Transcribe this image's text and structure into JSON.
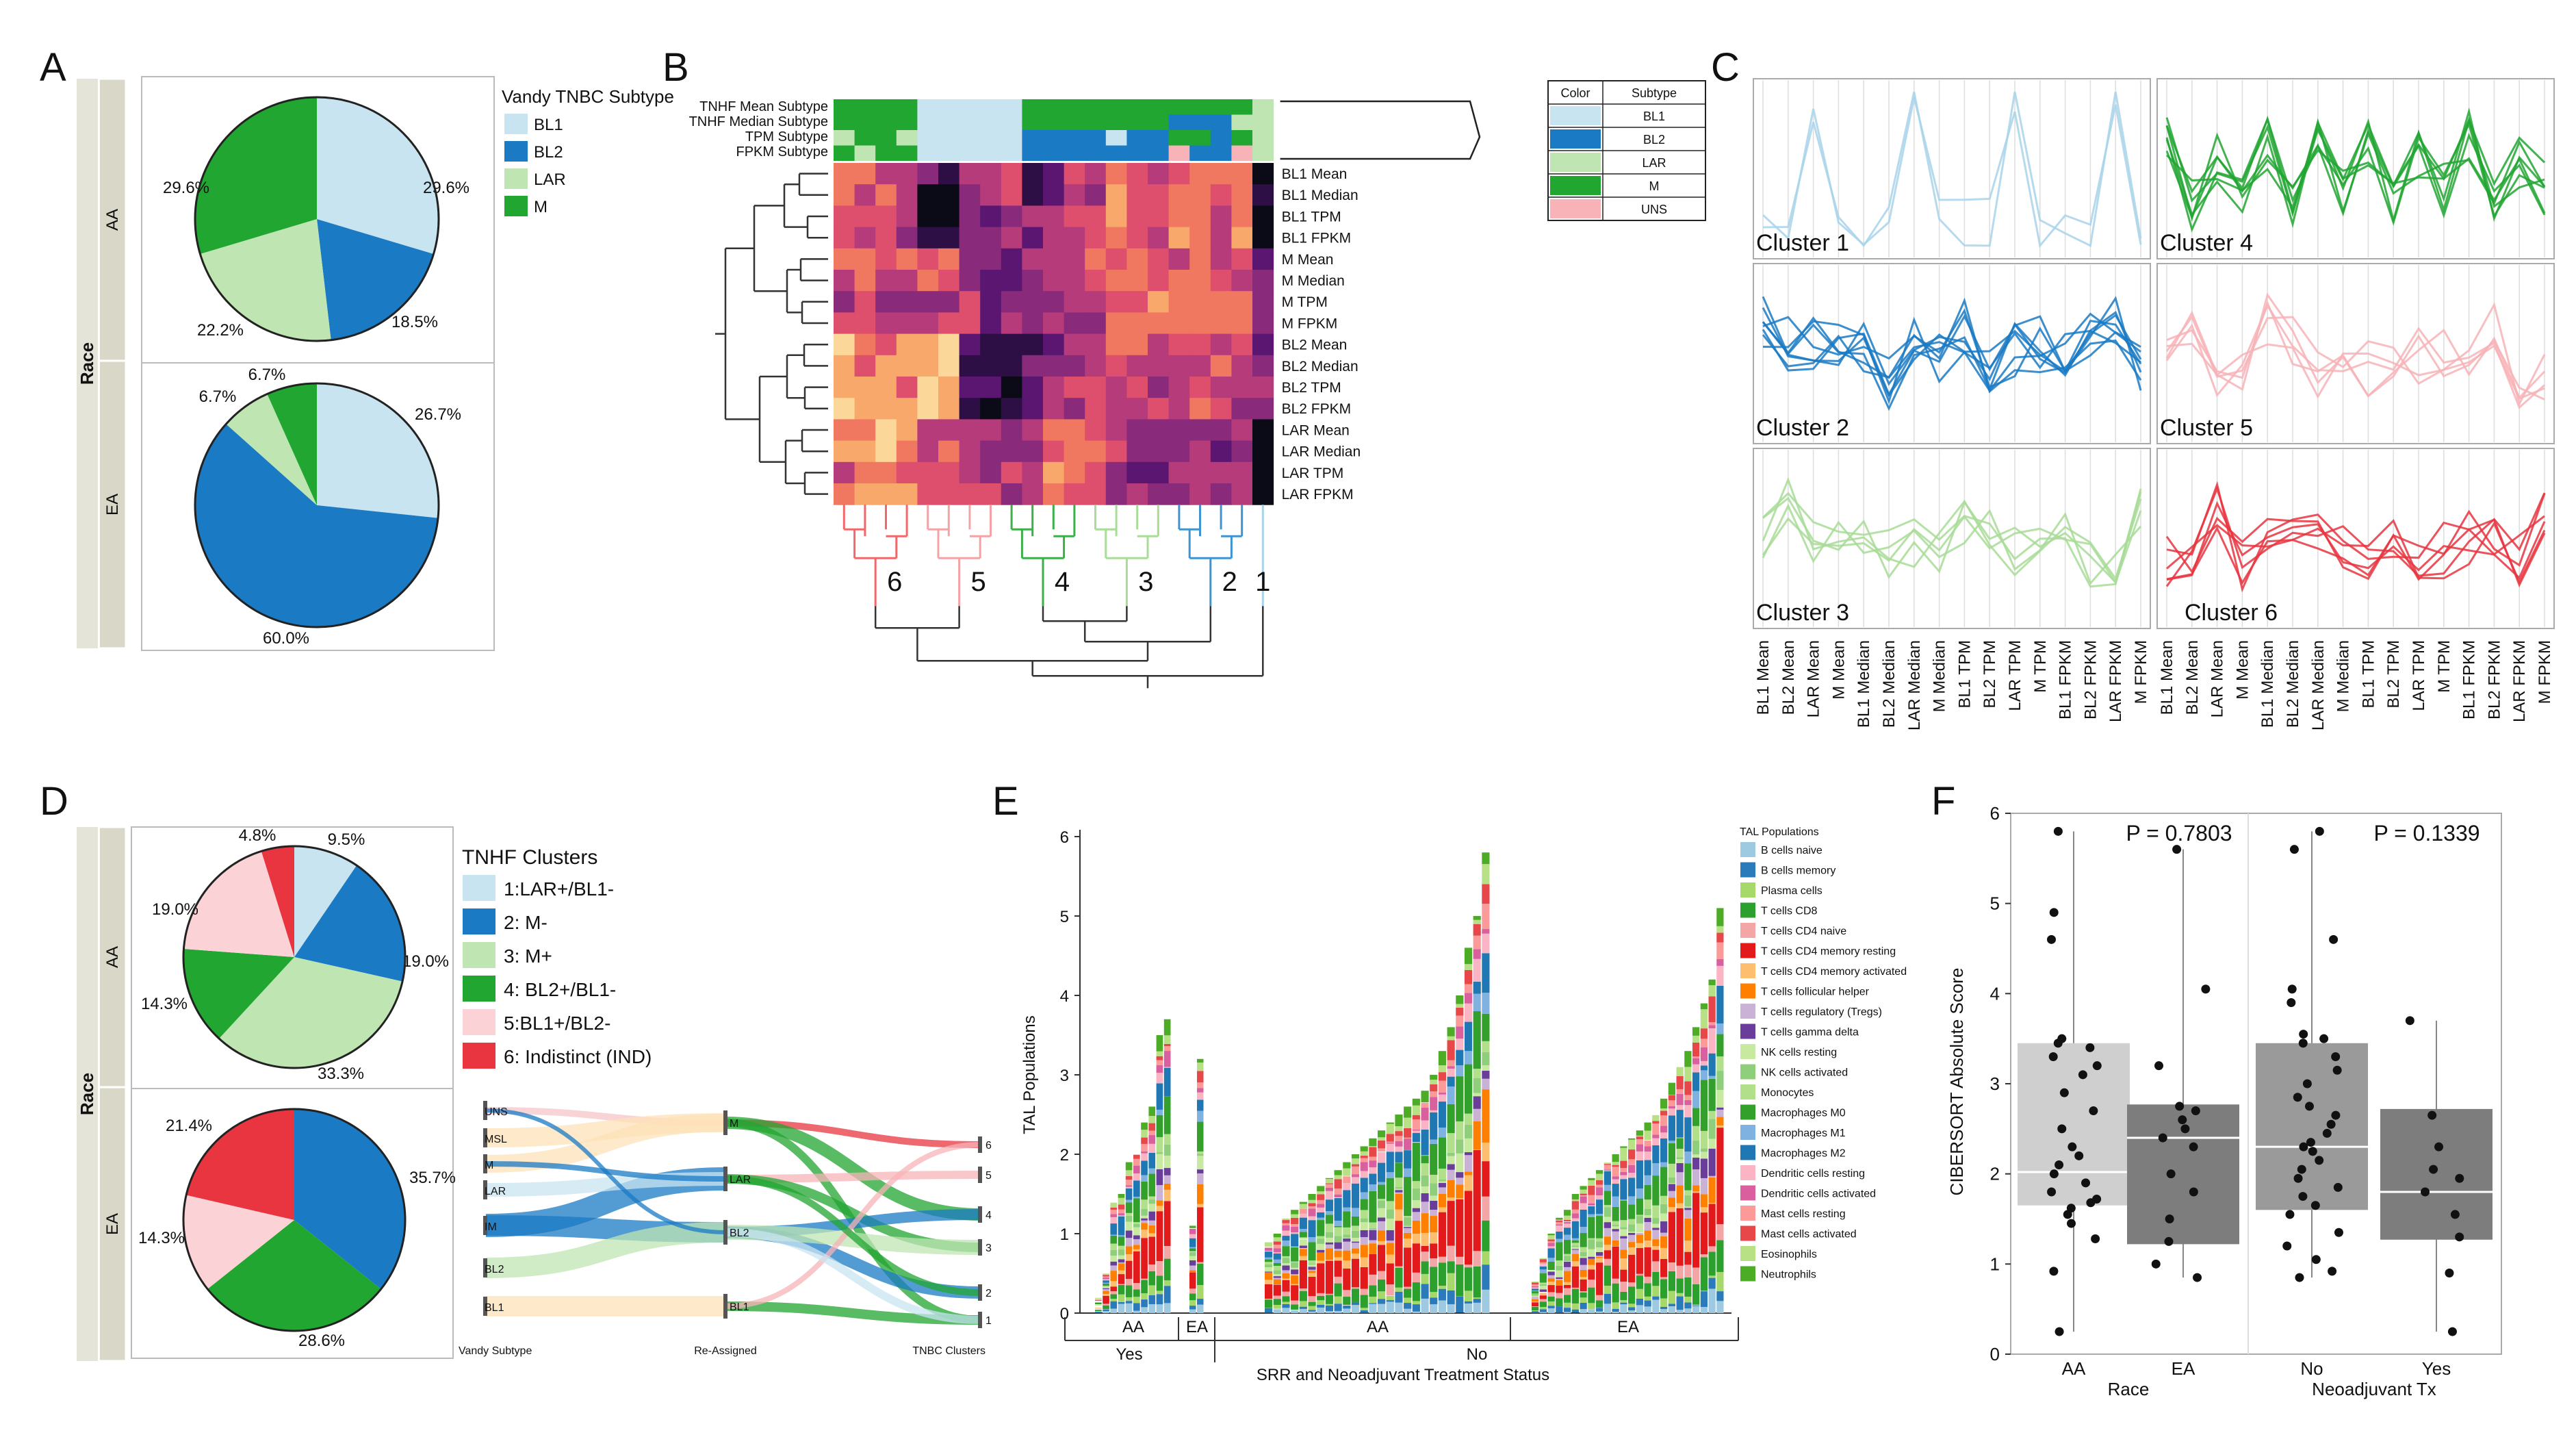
{
  "panel_letters": [
    "A",
    "B",
    "C",
    "D",
    "E",
    "F"
  ],
  "colors": {
    "BL1": "#c9e4f1",
    "BL2": "#1a7ac4",
    "LAR": "#bfe5b3",
    "M": "#21a631",
    "UNS": "#f7b3b7",
    "IND": "#e8353f",
    "gray_strip": "#e5e4d8"
  },
  "chart_data": [
    {
      "id": "A",
      "type": "pie",
      "title": "Vandy TNBC Subtype",
      "facet_label": "Race",
      "legend": [
        "BL1",
        "BL2",
        "LAR",
        "M"
      ],
      "groups": [
        {
          "name": "AA",
          "slices": [
            {
              "label": "BL1",
              "value": 29.6,
              "text": "29.6%"
            },
            {
              "label": "BL2",
              "value": 18.5,
              "text": "18.5%"
            },
            {
              "label": "LAR",
              "value": 22.2,
              "text": "22.2%"
            },
            {
              "label": "M",
              "value": 29.6,
              "text": "29.6%"
            }
          ]
        },
        {
          "name": "EA",
          "slices": [
            {
              "label": "BL1",
              "value": 26.7,
              "text": "26.7%"
            },
            {
              "label": "BL2",
              "value": 60.0,
              "text": "60.0%"
            },
            {
              "label": "LAR",
              "value": 6.7,
              "text": "6.7%"
            },
            {
              "label": "M",
              "value": 6.7,
              "text": "6.7%"
            }
          ]
        }
      ]
    },
    {
      "id": "B",
      "type": "heatmap",
      "top_bars": [
        "TNHF Mean Subtype",
        "TNHF Median Subtype",
        "TPM Subtype",
        "FPKM Subtype"
      ],
      "rows": [
        "BL1 Mean",
        "BL1 Median",
        "BL1 TPM",
        "BL1 FPKM",
        "M Mean",
        "M Median",
        "M TPM",
        "M FPKM",
        "BL2 Mean",
        "BL2 Median",
        "BL2 TPM",
        "BL2 FPKM",
        "LAR Mean",
        "LAR Median",
        "LAR TPM",
        "LAR FPKM"
      ],
      "cluster_labels": [
        "6",
        "5",
        "4",
        "3",
        "2",
        "1"
      ],
      "legend_header": [
        "Color",
        "Subtype"
      ],
      "legend": [
        "BL1",
        "BL2",
        "LAR",
        "M",
        "UNS"
      ]
    },
    {
      "id": "C",
      "type": "line",
      "clusters": [
        "Cluster 1",
        "Cluster 4",
        "Cluster 2",
        "Cluster 5",
        "Cluster 3",
        "Cluster 6"
      ],
      "x_ticks": [
        "BL1 Mean",
        "BL2 Mean",
        "LAR Mean",
        "M Mean",
        "BL1 Median",
        "BL2 Median",
        "LAR Median",
        "M Median",
        "BL1 TPM",
        "BL2 TPM",
        "LAR TPM",
        "M TPM",
        "BL1 FPKM",
        "BL2 FPKM",
        "LAR FPKM",
        "M FPKM"
      ]
    },
    {
      "id": "D",
      "type": "pie",
      "title": "TNHF Clusters",
      "facet_label": "Race",
      "legend": [
        "1:LAR+/BL1-",
        "2: M-",
        "3: M+",
        "4: BL2+/BL1-",
        "5:BL1+/BL2-",
        "6: Indistinct (IND)"
      ],
      "groups": [
        {
          "name": "AA",
          "slices": [
            {
              "label": "1",
              "value": 9.5,
              "text": "9.5%"
            },
            {
              "label": "2",
              "value": 19.0,
              "text": "19.0%"
            },
            {
              "label": "3",
              "value": 33.3,
              "text": "33.3%"
            },
            {
              "label": "4",
              "value": 14.3,
              "text": "14.3%"
            },
            {
              "label": "5",
              "value": 19.0,
              "text": "19.0%"
            },
            {
              "label": "6",
              "value": 4.8,
              "text": "4.8%"
            }
          ]
        },
        {
          "name": "EA",
          "slices": [
            {
              "label": "2",
              "value": 35.7,
              "text": "35.7%"
            },
            {
              "label": "4",
              "value": 28.6,
              "text": "28.6%"
            },
            {
              "label": "5",
              "value": 14.3,
              "text": "14.3%"
            },
            {
              "label": "6",
              "value": 21.4,
              "text": "21.4%"
            }
          ]
        }
      ],
      "sankey": {
        "axes": [
          "Vandy Subtype",
          "Re-Assigned",
          "TNBC Clusters"
        ],
        "left_nodes": [
          "UNS",
          "MSL",
          "M",
          "LAR",
          "IM",
          "BL2",
          "BL1"
        ],
        "mid_nodes": [
          "M",
          "LAR",
          "BL2",
          "BL1"
        ],
        "right_nodes": [
          "6",
          "5",
          "4",
          "3",
          "2",
          "1"
        ]
      }
    },
    {
      "id": "E",
      "type": "bar",
      "ylabel": "TAL Populations",
      "xlabel": "SRR and Neoadjuvant Treatment Status",
      "ylim": [
        0,
        6
      ],
      "yticks": [
        "0",
        "1",
        "2",
        "3",
        "4",
        "5",
        "6"
      ],
      "group_labels": [
        "AA",
        "EA",
        "AA",
        "EA"
      ],
      "treatment_labels": [
        "Yes",
        "No"
      ],
      "legend_title": "TAL Populations",
      "series": [
        {
          "name": "B cells naive",
          "color": "#9ecae1"
        },
        {
          "name": "B cells memory",
          "color": "#2b7bba"
        },
        {
          "name": "Plasma cells",
          "color": "#a6d96a"
        },
        {
          "name": "T cells CD8",
          "color": "#2ca02c"
        },
        {
          "name": "T cells CD4 naive",
          "color": "#f4a6a6"
        },
        {
          "name": "T cells CD4 memory resting",
          "color": "#e31a1c"
        },
        {
          "name": "T cells CD4 memory activated",
          "color": "#fdbf6f"
        },
        {
          "name": "T cells follicular helper",
          "color": "#ff7f00"
        },
        {
          "name": "T cells regulatory (Tregs)",
          "color": "#cab2d6"
        },
        {
          "name": "T cells gamma delta",
          "color": "#6a3d9a"
        },
        {
          "name": "NK cells resting",
          "color": "#c7e9a0"
        },
        {
          "name": "NK cells activated",
          "color": "#8fce7a"
        },
        {
          "name": "Monocytes",
          "color": "#b2df8a"
        },
        {
          "name": "Macrophages M0",
          "color": "#33a02c"
        },
        {
          "name": "Macrophages M1",
          "color": "#7fb2e0"
        },
        {
          "name": "Macrophages M2",
          "color": "#1f78b4"
        },
        {
          "name": "Dendritic cells resting",
          "color": "#fbb4c4"
        },
        {
          "name": "Dendritic cells activated",
          "color": "#d95f9e"
        },
        {
          "name": "Mast cells resting",
          "color": "#fb9a99"
        },
        {
          "name": "Mast cells activated",
          "color": "#e8474a"
        },
        {
          "name": "Eosinophils",
          "color": "#b8e186"
        },
        {
          "name": "Neutrophils",
          "color": "#4dac26"
        }
      ],
      "group_totals": [
        {
          "group": "Yes-AA",
          "totals": [
            0.2,
            0.5,
            1.4,
            1.5,
            1.9,
            2.0,
            2.4,
            2.6,
            3.5,
            3.7
          ]
        },
        {
          "group": "Yes-EA",
          "totals": [
            1.1,
            3.2
          ]
        },
        {
          "group": "No-AA",
          "totals": [
            0.9,
            1.0,
            1.2,
            1.3,
            1.4,
            1.5,
            1.6,
            1.7,
            1.8,
            1.9,
            2.0,
            2.1,
            2.2,
            2.3,
            2.4,
            2.5,
            2.6,
            2.7,
            2.8,
            3.0,
            3.3,
            3.6,
            4.0,
            4.6,
            5.0,
            5.8
          ]
        },
        {
          "group": "No-EA",
          "totals": [
            0.4,
            0.7,
            1.0,
            1.2,
            1.3,
            1.5,
            1.6,
            1.7,
            1.8,
            1.9,
            2.0,
            2.1,
            2.2,
            2.3,
            2.4,
            2.5,
            2.7,
            2.9,
            3.1,
            3.3,
            3.6,
            3.9,
            4.2,
            5.1
          ]
        }
      ]
    },
    {
      "id": "F",
      "type": "scatter",
      "ylabel": "CIBERSORT Absolute Score",
      "ylim": [
        0,
        6
      ],
      "yticks": [
        "0",
        "1",
        "2",
        "3",
        "4",
        "5",
        "6"
      ],
      "facets": [
        {
          "title": "Race",
          "categories": [
            "AA",
            "EA"
          ],
          "p_value": "P = 0.7803"
        },
        {
          "title": "Neoadjuvant Tx",
          "categories": [
            "No",
            "Yes"
          ],
          "p_value": "P = 0.1339"
        }
      ],
      "boxes": [
        {
          "category": "AA",
          "min": 0.25,
          "q1": 1.65,
          "median": 2.02,
          "q3": 3.45,
          "max": 5.8,
          "color": "#cfcfcf",
          "points": [
            0.25,
            0.92,
            1.28,
            1.45,
            1.55,
            1.62,
            1.68,
            1.72,
            1.8,
            1.9,
            2.0,
            2.1,
            2.2,
            2.3,
            2.5,
            2.7,
            2.9,
            3.1,
            3.2,
            3.3,
            3.4,
            3.45,
            3.5,
            4.6,
            4.9,
            5.8
          ]
        },
        {
          "category": "EA",
          "min": 0.85,
          "q1": 1.22,
          "median": 2.4,
          "q3": 2.77,
          "max": 5.6,
          "color": "#7d7d7d",
          "points": [
            0.85,
            1.0,
            1.25,
            1.5,
            1.8,
            2.0,
            2.3,
            2.4,
            2.5,
            2.6,
            2.7,
            2.75,
            3.2,
            4.05,
            5.6
          ]
        },
        {
          "category": "No",
          "min": 0.85,
          "q1": 1.6,
          "median": 2.3,
          "q3": 3.45,
          "max": 5.8,
          "color": "#9a9a9a",
          "points": [
            0.85,
            0.92,
            1.05,
            1.2,
            1.35,
            1.55,
            1.65,
            1.75,
            1.85,
            1.95,
            2.05,
            2.15,
            2.25,
            2.3,
            2.35,
            2.45,
            2.55,
            2.65,
            2.75,
            2.85,
            3.0,
            3.15,
            3.3,
            3.45,
            3.5,
            3.55,
            3.9,
            4.05,
            4.6,
            5.6,
            5.8
          ]
        },
        {
          "category": "Yes",
          "min": 0.25,
          "q1": 1.27,
          "median": 1.8,
          "q3": 2.72,
          "max": 3.7,
          "color": "#7d7d7d",
          "points": [
            0.25,
            0.9,
            1.3,
            1.55,
            1.8,
            1.95,
            2.05,
            2.3,
            2.65,
            3.7
          ]
        }
      ]
    }
  ]
}
